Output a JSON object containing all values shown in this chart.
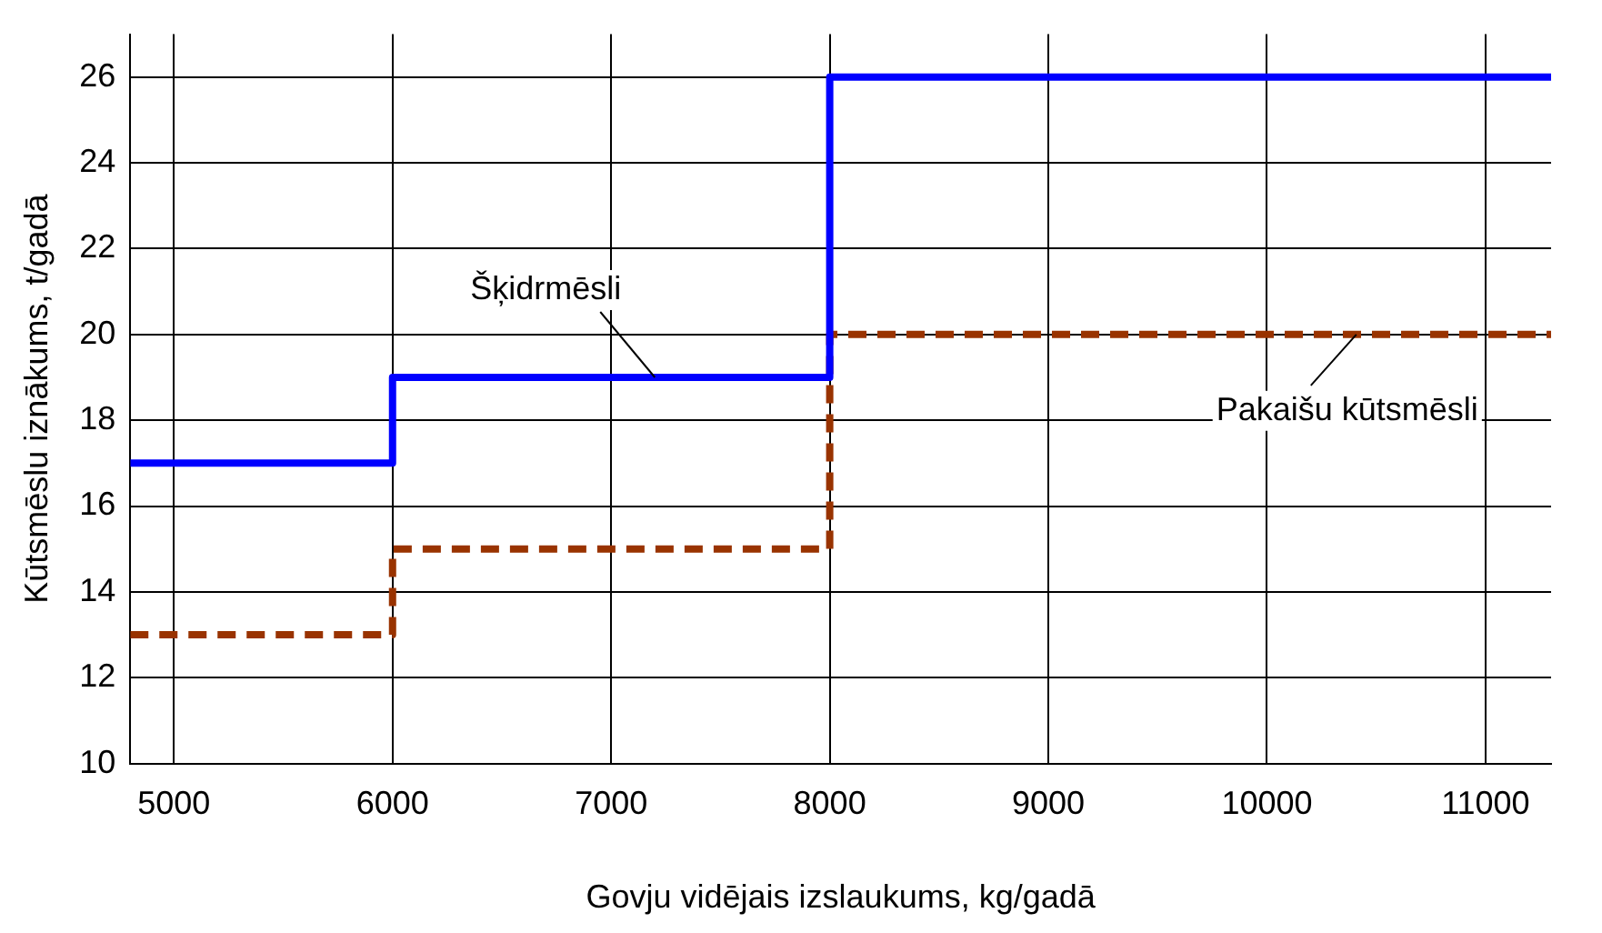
{
  "chart_data": {
    "type": "step",
    "xlabel": "Govju vidējais izslaukums, kg/gadā",
    "ylabel": "Kūtsmēslu iznākums, t/gadā",
    "xlim": [
      4800,
      11300
    ],
    "xticks": [
      5000,
      6000,
      7000,
      8000,
      9000,
      10000,
      11000
    ],
    "ylim": [
      10,
      27
    ],
    "yticks": [
      10,
      12,
      14,
      16,
      18,
      20,
      22,
      24,
      26
    ],
    "x": [
      4800,
      6000,
      8000,
      11300
    ],
    "series": [
      {
        "name": "Šķidrmēsli",
        "color": "#0000ff",
        "values": [
          17,
          19,
          26,
          26
        ],
        "line_style": "solid"
      },
      {
        "name": "Pakaišu kūtsmēsli",
        "color": "#993300",
        "values": [
          13,
          15,
          20,
          20
        ],
        "line_style": "dashed"
      }
    ],
    "grid": true,
    "legend": false,
    "marker": "none"
  }
}
